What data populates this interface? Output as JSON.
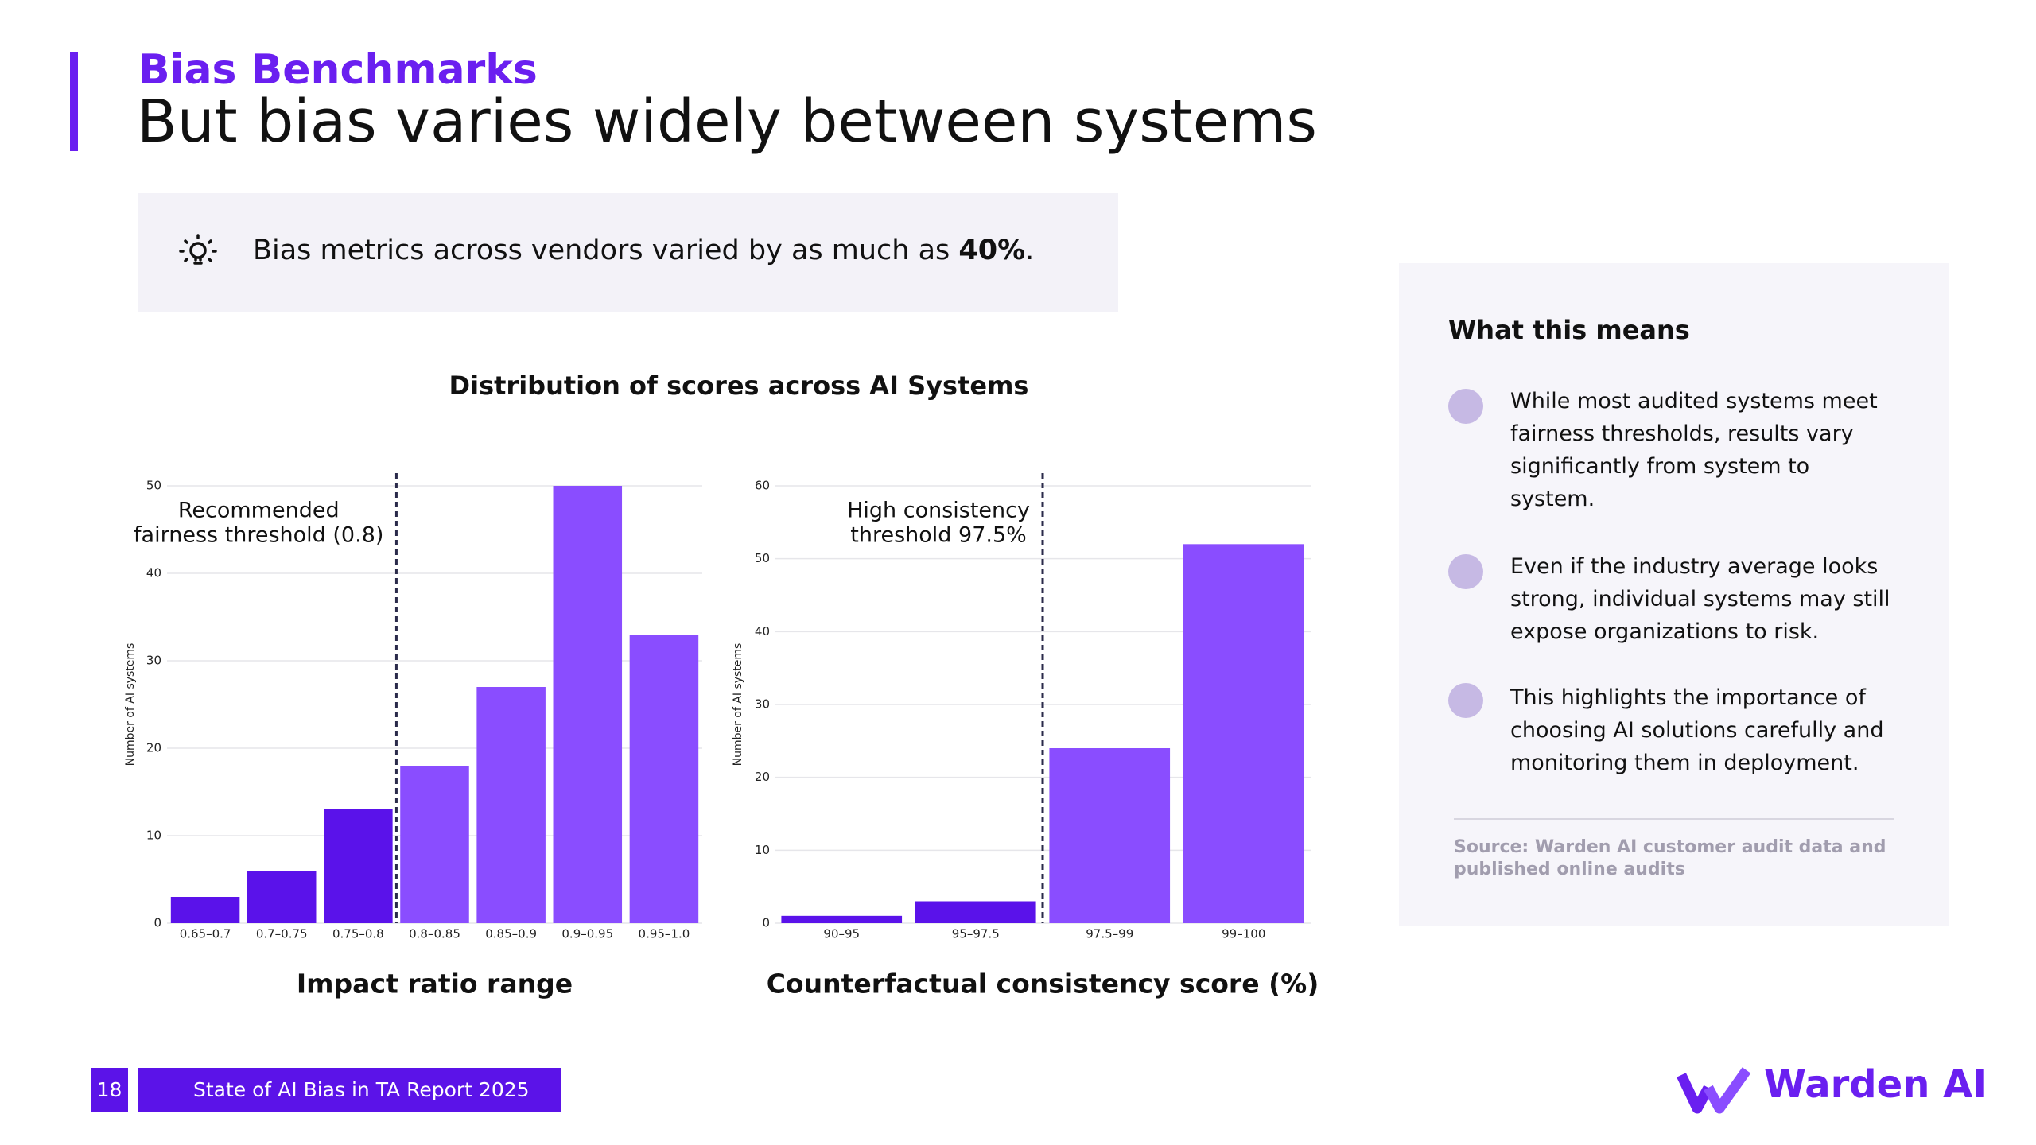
{
  "header": {
    "section": "Bias Benchmarks",
    "title": "But bias varies widely between systems"
  },
  "callout": {
    "text": "Bias metrics across vendors varied by as much as ",
    "emphasis": "40%",
    "end": "."
  },
  "charts_title": "Distribution of scores across AI Systems",
  "chart_data": [
    {
      "type": "bar",
      "x_label": "Impact ratio range",
      "y_label": "Number of AI systems",
      "categories": [
        "0.65–0.7",
        "0.7–0.75",
        "0.75–0.8",
        "0.8–0.85",
        "0.85–0.9",
        "0.9–0.95",
        "0.95–1.0"
      ],
      "values": [
        3,
        6,
        13,
        18,
        27,
        50,
        33
      ],
      "colors": [
        "#5a12ea",
        "#5a12ea",
        "#5a12ea",
        "#8a4dff",
        "#8a4dff",
        "#8a4dff",
        "#8a4dff"
      ],
      "ylim": [
        0,
        50
      ],
      "yticks": [
        0,
        10,
        20,
        30,
        40,
        50
      ],
      "grid": true,
      "annotation": [
        "Recommended",
        "fairness threshold (0.8)"
      ]
    },
    {
      "type": "bar",
      "x_label": "Counterfactual consistency score (%)",
      "y_label": "Number of AI systems",
      "categories": [
        "90–95",
        "95–97.5",
        "97.5–99",
        "99–100"
      ],
      "values": [
        1,
        3,
        24,
        52
      ],
      "colors": [
        "#5a12ea",
        "#5a12ea",
        "#8a4dff",
        "#8a4dff"
      ],
      "ylim": [
        0,
        60
      ],
      "yticks": [
        0,
        10,
        20,
        30,
        40,
        50,
        60
      ],
      "grid": true,
      "annotation": [
        "High consistency",
        "threshold 97.5%"
      ]
    }
  ],
  "panel": {
    "heading": "What this means",
    "bullets": [
      "While most audited systems meet fairness thresholds, results vary significantly from system to system.",
      "Even if the industry average looks strong, individual systems may still expose organizations to risk.",
      "This highlights the importance of choosing AI solutions carefully and monitoring them in deployment."
    ],
    "source": "Source: Warden AI customer audit data and published online audits"
  },
  "footer": {
    "page": "18",
    "report": "State of AI Bias in TA Report 2025",
    "brand": "Warden AI"
  }
}
